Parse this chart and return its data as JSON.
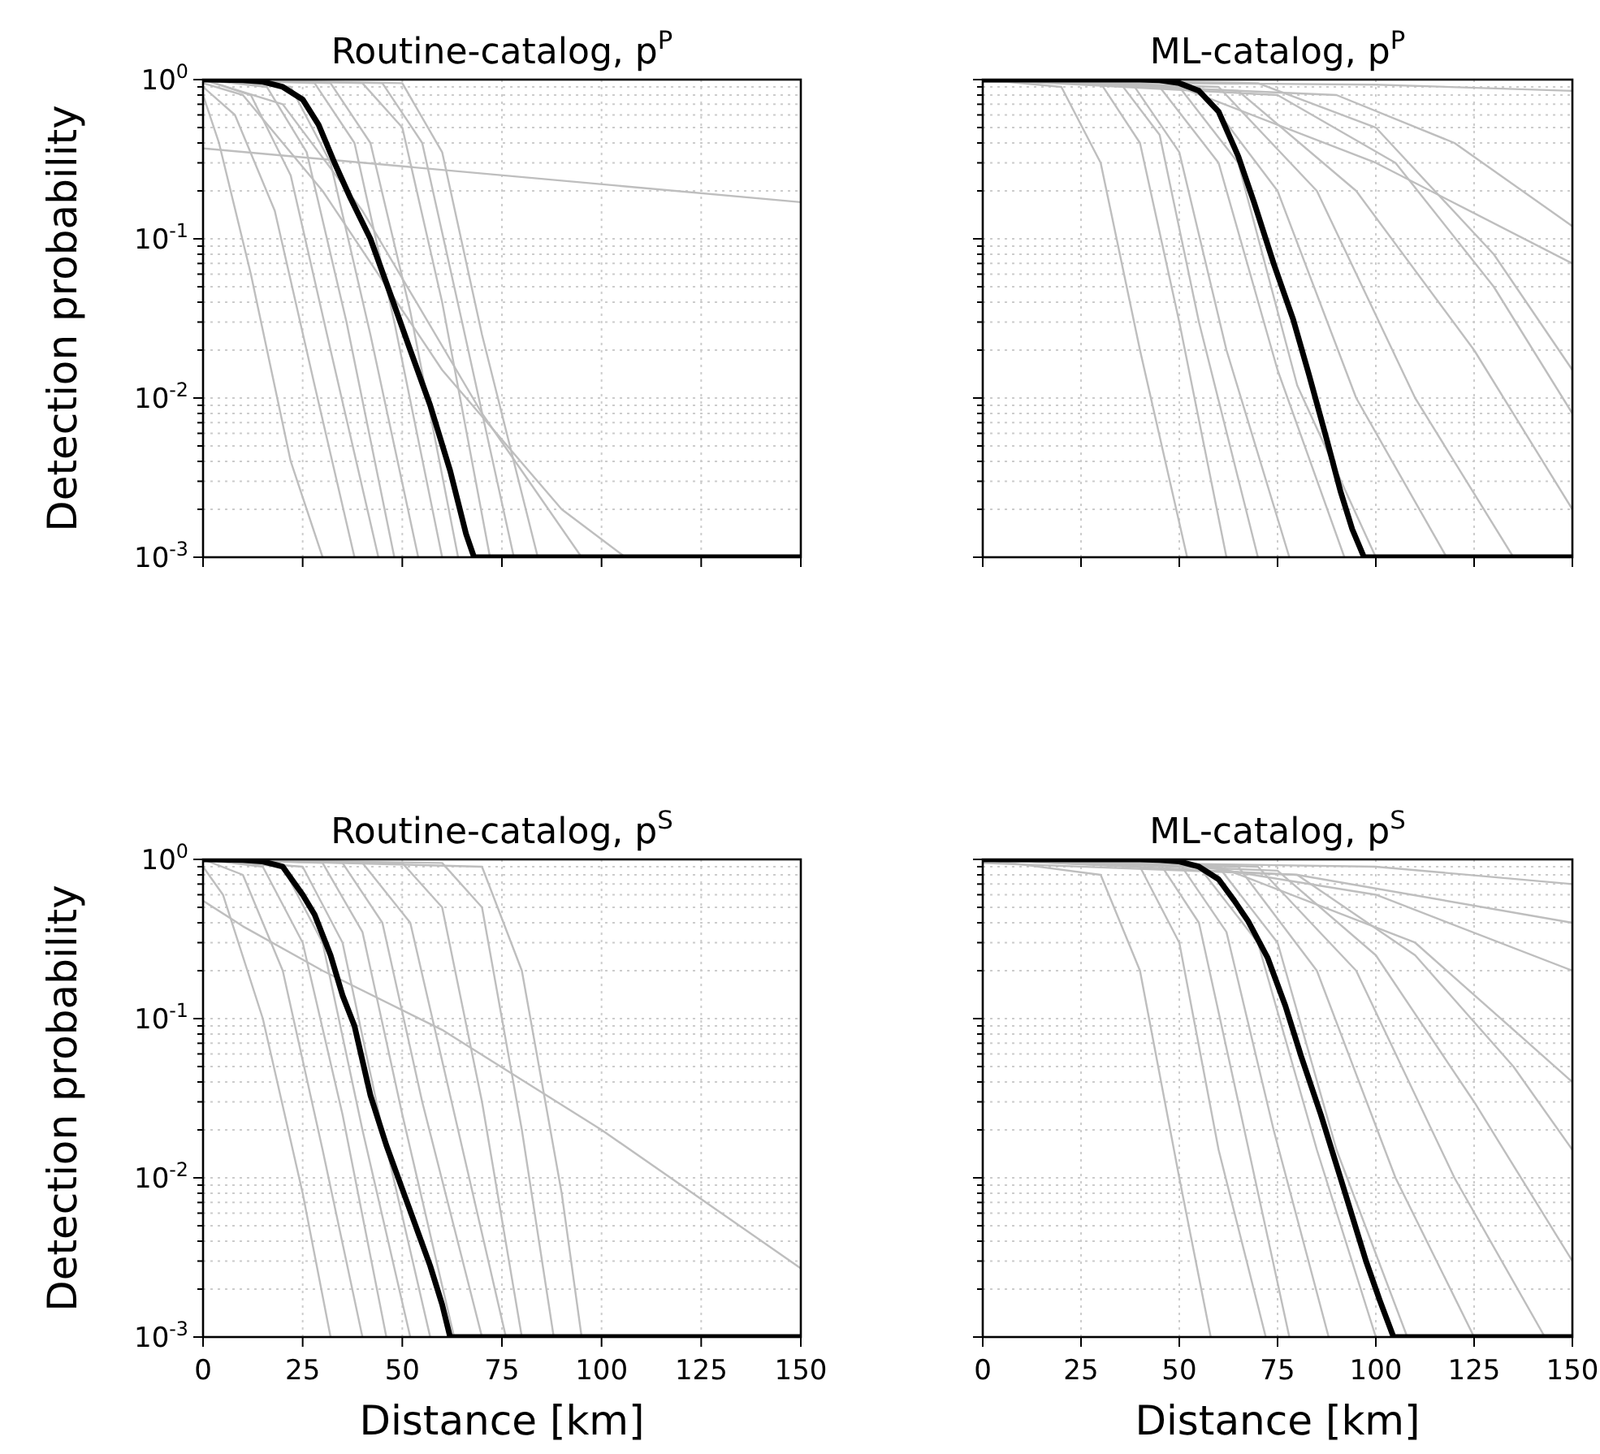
{
  "chart_data": [
    {
      "type": "line",
      "title": "Routine-catalog, p$^{P}$",
      "ylabel": "Detection probability",
      "log": "y",
      "grid": true,
      "tick_labels": "y",
      "xlim": [
        0,
        150
      ],
      "ylim": [
        0.001,
        1
      ],
      "xticks": [
        0,
        25,
        50,
        75,
        100,
        125,
        150
      ],
      "yticks": [
        {
          "value": 0.001,
          "label": "10$^{-3}$"
        },
        {
          "value": 0.002,
          "label": null
        },
        {
          "value": 0.003,
          "label": null
        },
        {
          "value": 0.004,
          "label": null
        },
        {
          "value": 0.005,
          "label": null
        },
        {
          "value": 0.006,
          "label": null
        },
        {
          "value": 0.007,
          "label": null
        },
        {
          "value": 0.008,
          "label": null
        },
        {
          "value": 0.009,
          "label": null
        },
        {
          "value": 0.01,
          "label": "10$^{-2}$"
        },
        {
          "value": 0.02,
          "label": null
        },
        {
          "value": 0.03,
          "label": null
        },
        {
          "value": 0.04,
          "label": null
        },
        {
          "value": 0.05,
          "label": null
        },
        {
          "value": 0.06,
          "label": null
        },
        {
          "value": 0.07,
          "label": null
        },
        {
          "value": 0.08,
          "label": null
        },
        {
          "value": 0.09,
          "label": null
        },
        {
          "value": 0.1,
          "label": "10$^{-1}$"
        },
        {
          "value": 0.2,
          "label": null
        },
        {
          "value": 0.3,
          "label": null
        },
        {
          "value": 0.4,
          "label": null
        },
        {
          "value": 0.5,
          "label": null
        },
        {
          "value": 0.6,
          "label": null
        },
        {
          "value": 0.7,
          "label": null
        },
        {
          "value": 0.8,
          "label": null
        },
        {
          "value": 0.9,
          "label": null
        },
        {
          "value": 1,
          "label": "10$^{0}$"
        }
      ],
      "series": [
        {
          "color": "#bebebe",
          "x": [
            0,
            8,
            18,
            28,
            38
          ],
          "values": [
            0.9,
            0.6,
            0.15,
            0.012,
            0.001
          ]
        },
        {
          "color": "#bebebe",
          "x": [
            0,
            12,
            22,
            32,
            44
          ],
          "values": [
            1,
            0.8,
            0.25,
            0.02,
            0.001
          ]
        },
        {
          "color": "#bebebe",
          "x": [
            0,
            16,
            26,
            36,
            48
          ],
          "values": [
            1,
            0.9,
            0.35,
            0.03,
            0.001
          ]
        },
        {
          "color": "#bebebe",
          "x": [
            0,
            22,
            32,
            42,
            54
          ],
          "values": [
            1,
            0.9,
            0.3,
            0.025,
            0.001
          ]
        },
        {
          "color": "#bebebe",
          "x": [
            0,
            28,
            38,
            48,
            60
          ],
          "values": [
            1,
            0.95,
            0.4,
            0.03,
            0.001
          ]
        },
        {
          "color": "#bebebe",
          "x": [
            0,
            32,
            42,
            52,
            64
          ],
          "values": [
            1,
            0.95,
            0.4,
            0.035,
            0.001
          ]
        },
        {
          "color": "#bebebe",
          "x": [
            0,
            40,
            50,
            60,
            72
          ],
          "values": [
            1,
            0.95,
            0.5,
            0.04,
            0.001
          ]
        },
        {
          "color": "#bebebe",
          "x": [
            0,
            45,
            55,
            65,
            78
          ],
          "values": [
            1,
            0.95,
            0.4,
            0.03,
            0.001
          ]
        },
        {
          "color": "#bebebe",
          "x": [
            0,
            50,
            60,
            70,
            84
          ],
          "values": [
            1,
            0.95,
            0.35,
            0.025,
            0.001
          ]
        },
        {
          "color": "#bebebe",
          "x": [
            0,
            10,
            30,
            60,
            90,
            106
          ],
          "values": [
            0.95,
            0.8,
            0.2,
            0.015,
            0.002,
            0.001
          ]
        },
        {
          "color": "#bebebe",
          "x": [
            0,
            150
          ],
          "values": [
            0.37,
            0.17
          ]
        },
        {
          "color": "#bebebe",
          "x": [
            0,
            4,
            12,
            22,
            30
          ],
          "values": [
            0.8,
            0.4,
            0.06,
            0.004,
            0.001
          ]
        },
        {
          "color": "#bebebe",
          "x": [
            0,
            20,
            40,
            70,
            95
          ],
          "values": [
            1,
            0.7,
            0.15,
            0.008,
            0.001
          ]
        },
        {
          "color": "#000000",
          "x": [
            0,
            10,
            15,
            20,
            25,
            29,
            33,
            37,
            42,
            47,
            52,
            57,
            62,
            66,
            68,
            150
          ],
          "values": [
            1,
            0.99,
            0.97,
            0.9,
            0.75,
            0.52,
            0.3,
            0.18,
            0.1,
            0.045,
            0.02,
            0.009,
            0.0035,
            0.0014,
            0.001,
            0.001
          ]
        }
      ]
    },
    {
      "type": "line",
      "title": "ML-catalog, p$^{P}$",
      "log": "y",
      "grid": true,
      "tick_labels": false,
      "xlim": [
        0,
        150
      ],
      "ylim": [
        0.001,
        1
      ],
      "xticks": [
        0,
        25,
        50,
        75,
        100,
        125,
        150
      ],
      "yticks": [
        0.001,
        {
          "value": 0.002,
          "label": null
        },
        {
          "value": 0.003,
          "label": null
        },
        {
          "value": 0.004,
          "label": null
        },
        {
          "value": 0.005,
          "label": null
        },
        {
          "value": 0.006,
          "label": null
        },
        {
          "value": 0.007,
          "label": null
        },
        {
          "value": 0.008,
          "label": null
        },
        {
          "value": 0.009,
          "label": null
        },
        0.01,
        {
          "value": 0.02,
          "label": null
        },
        {
          "value": 0.03,
          "label": null
        },
        {
          "value": 0.04,
          "label": null
        },
        {
          "value": 0.05,
          "label": null
        },
        {
          "value": 0.06,
          "label": null
        },
        {
          "value": 0.07,
          "label": null
        },
        {
          "value": 0.08,
          "label": null
        },
        {
          "value": 0.09,
          "label": null
        },
        0.1,
        {
          "value": 0.2,
          "label": null
        },
        {
          "value": 0.3,
          "label": null
        },
        {
          "value": 0.4,
          "label": null
        },
        {
          "value": 0.5,
          "label": null
        },
        {
          "value": 0.6,
          "label": null
        },
        {
          "value": 0.7,
          "label": null
        },
        {
          "value": 0.8,
          "label": null
        },
        {
          "value": 0.9,
          "label": null
        },
        1
      ],
      "series": [
        {
          "color": "#bebebe",
          "x": [
            0,
            20,
            30,
            40,
            52
          ],
          "values": [
            1,
            0.9,
            0.3,
            0.02,
            0.001
          ]
        },
        {
          "color": "#bebebe",
          "x": [
            0,
            30,
            40,
            50,
            62
          ],
          "values": [
            1,
            0.95,
            0.4,
            0.03,
            0.001
          ]
        },
        {
          "color": "#bebebe",
          "x": [
            0,
            35,
            45,
            55,
            70
          ],
          "values": [
            1,
            0.95,
            0.45,
            0.03,
            0.001
          ]
        },
        {
          "color": "#bebebe",
          "x": [
            0,
            38,
            50,
            62,
            78
          ],
          "values": [
            1,
            0.95,
            0.35,
            0.02,
            0.001
          ]
        },
        {
          "color": "#bebebe",
          "x": [
            0,
            45,
            60,
            75,
            92
          ],
          "values": [
            1,
            0.9,
            0.3,
            0.015,
            0.001
          ]
        },
        {
          "color": "#bebebe",
          "x": [
            0,
            50,
            65,
            80,
            100
          ],
          "values": [
            1,
            0.9,
            0.3,
            0.012,
            0.001
          ]
        },
        {
          "color": "#bebebe",
          "x": [
            0,
            55,
            75,
            95,
            118
          ],
          "values": [
            1,
            0.9,
            0.2,
            0.01,
            0.001
          ]
        },
        {
          "color": "#bebebe",
          "x": [
            0,
            60,
            85,
            110,
            135
          ],
          "values": [
            1,
            0.9,
            0.2,
            0.01,
            0.001
          ]
        },
        {
          "color": "#bebebe",
          "x": [
            0,
            65,
            95,
            125,
            150
          ],
          "values": [
            1,
            0.85,
            0.2,
            0.02,
            0.002
          ]
        },
        {
          "color": "#bebebe",
          "x": [
            0,
            75,
            105,
            130,
            150
          ],
          "values": [
            1,
            0.8,
            0.3,
            0.05,
            0.008
          ]
        },
        {
          "color": "#bebebe",
          "x": [
            0,
            90,
            120,
            150
          ],
          "values": [
            1,
            0.8,
            0.4,
            0.12
          ]
        },
        {
          "color": "#bebebe",
          "x": [
            0,
            50,
            100,
            150
          ],
          "values": [
            1,
            0.9,
            0.3,
            0.07
          ]
        },
        {
          "color": "#bebebe",
          "x": [
            0,
            100,
            150
          ],
          "values": [
            0.97,
            0.93,
            0.85
          ]
        },
        {
          "color": "#bebebe",
          "x": [
            0,
            70,
            100,
            130,
            150
          ],
          "values": [
            1,
            0.95,
            0.5,
            0.08,
            0.015
          ]
        },
        {
          "color": "#000000",
          "x": [
            0,
            40,
            45,
            50,
            55,
            60,
            65,
            69,
            74,
            79,
            83,
            87.5,
            91,
            94,
            97,
            150
          ],
          "values": [
            1,
            1,
            0.99,
            0.95,
            0.85,
            0.63,
            0.33,
            0.17,
            0.07,
            0.031,
            0.014,
            0.0055,
            0.0026,
            0.0015,
            0.001,
            0.001
          ]
        }
      ]
    },
    {
      "type": "line",
      "title": "Routine-catalog, p$^{S}$",
      "xlabel": "Distance [km]",
      "ylabel": "Detection probability",
      "log": "y",
      "grid": true,
      "xlim": [
        0,
        150
      ],
      "ylim": [
        0.001,
        1
      ],
      "xticks": [
        0,
        25,
        50,
        75,
        100,
        125,
        150
      ],
      "yticks": [
        {
          "value": 0.001,
          "label": "10$^{-3}$"
        },
        {
          "value": 0.002,
          "label": null
        },
        {
          "value": 0.003,
          "label": null
        },
        {
          "value": 0.004,
          "label": null
        },
        {
          "value": 0.005,
          "label": null
        },
        {
          "value": 0.006,
          "label": null
        },
        {
          "value": 0.007,
          "label": null
        },
        {
          "value": 0.008,
          "label": null
        },
        {
          "value": 0.009,
          "label": null
        },
        {
          "value": 0.01,
          "label": "10$^{-2}$"
        },
        {
          "value": 0.02,
          "label": null
        },
        {
          "value": 0.03,
          "label": null
        },
        {
          "value": 0.04,
          "label": null
        },
        {
          "value": 0.05,
          "label": null
        },
        {
          "value": 0.06,
          "label": null
        },
        {
          "value": 0.07,
          "label": null
        },
        {
          "value": 0.08,
          "label": null
        },
        {
          "value": 0.09,
          "label": null
        },
        {
          "value": 0.1,
          "label": "10$^{-1}$"
        },
        {
          "value": 0.2,
          "label": null
        },
        {
          "value": 0.3,
          "label": null
        },
        {
          "value": 0.4,
          "label": null
        },
        {
          "value": 0.5,
          "label": null
        },
        {
          "value": 0.6,
          "label": null
        },
        {
          "value": 0.7,
          "label": null
        },
        {
          "value": 0.8,
          "label": null
        },
        {
          "value": 0.9,
          "label": null
        },
        {
          "value": 1,
          "label": "10$^{0}$"
        }
      ],
      "series": [
        {
          "color": "#bebebe",
          "x": [
            0,
            5,
            15,
            25,
            32
          ],
          "values": [
            0.9,
            0.6,
            0.1,
            0.008,
            0.001
          ]
        },
        {
          "color": "#bebebe",
          "x": [
            0,
            10,
            20,
            30,
            40
          ],
          "values": [
            1,
            0.8,
            0.2,
            0.015,
            0.001
          ]
        },
        {
          "color": "#bebebe",
          "x": [
            0,
            15,
            25,
            35,
            46
          ],
          "values": [
            1,
            0.9,
            0.3,
            0.025,
            0.001
          ]
        },
        {
          "color": "#bebebe",
          "x": [
            0,
            20,
            30,
            40,
            52
          ],
          "values": [
            1,
            0.9,
            0.3,
            0.02,
            0.001
          ]
        },
        {
          "color": "#bebebe",
          "x": [
            0,
            25,
            35,
            45,
            57
          ],
          "values": [
            1,
            0.9,
            0.3,
            0.02,
            0.001
          ]
        },
        {
          "color": "#bebebe",
          "x": [
            0,
            30,
            40,
            50,
            63
          ],
          "values": [
            1,
            0.95,
            0.35,
            0.025,
            0.001
          ]
        },
        {
          "color": "#bebebe",
          "x": [
            0,
            35,
            45,
            55,
            70
          ],
          "values": [
            1,
            0.95,
            0.4,
            0.03,
            0.001
          ]
        },
        {
          "color": "#bebebe",
          "x": [
            0,
            40,
            52,
            64,
            76
          ],
          "values": [
            1,
            0.95,
            0.4,
            0.02,
            0.001
          ]
        },
        {
          "color": "#bebebe",
          "x": [
            0,
            50,
            60,
            70,
            80
          ],
          "values": [
            1,
            0.95,
            0.5,
            0.03,
            0.001
          ]
        },
        {
          "color": "#bebebe",
          "x": [
            0,
            60,
            70,
            80,
            88
          ],
          "values": [
            1,
            0.95,
            0.5,
            0.02,
            0.001
          ]
        },
        {
          "color": "#bebebe",
          "x": [
            0,
            70,
            80,
            90,
            95
          ],
          "values": [
            1,
            0.9,
            0.2,
            0.008,
            0.001
          ]
        },
        {
          "color": "#bebebe",
          "x": [
            0,
            10,
            30,
            60,
            100,
            150
          ],
          "values": [
            0.55,
            0.38,
            0.2,
            0.085,
            0.02,
            0.0027
          ]
        },
        {
          "color": "#000000",
          "x": [
            0,
            10,
            15,
            20,
            25,
            28,
            32,
            35,
            38,
            42,
            46,
            50,
            54,
            57,
            60,
            62,
            150
          ],
          "values": [
            1,
            0.99,
            0.97,
            0.9,
            0.6,
            0.45,
            0.25,
            0.14,
            0.09,
            0.033,
            0.016,
            0.0085,
            0.0045,
            0.0028,
            0.0016,
            0.001,
            0.001
          ]
        }
      ]
    },
    {
      "type": "line",
      "title": "ML-catalog, p$^{S}$",
      "xlabel": "Distance [km]",
      "log": "y",
      "grid": true,
      "tick_labels": "x",
      "xlim": [
        0,
        150
      ],
      "ylim": [
        0.001,
        1
      ],
      "xticks": [
        0,
        25,
        50,
        75,
        100,
        125,
        150
      ],
      "yticks": [
        0.001,
        {
          "value": 0.002,
          "label": null
        },
        {
          "value": 0.003,
          "label": null
        },
        {
          "value": 0.004,
          "label": null
        },
        {
          "value": 0.005,
          "label": null
        },
        {
          "value": 0.006,
          "label": null
        },
        {
          "value": 0.007,
          "label": null
        },
        {
          "value": 0.008,
          "label": null
        },
        {
          "value": 0.009,
          "label": null
        },
        0.01,
        {
          "value": 0.02,
          "label": null
        },
        {
          "value": 0.03,
          "label": null
        },
        {
          "value": 0.04,
          "label": null
        },
        {
          "value": 0.05,
          "label": null
        },
        {
          "value": 0.06,
          "label": null
        },
        {
          "value": 0.07,
          "label": null
        },
        {
          "value": 0.08,
          "label": null
        },
        {
          "value": 0.09,
          "label": null
        },
        0.1,
        {
          "value": 0.2,
          "label": null
        },
        {
          "value": 0.3,
          "label": null
        },
        {
          "value": 0.4,
          "label": null
        },
        {
          "value": 0.5,
          "label": null
        },
        {
          "value": 0.6,
          "label": null
        },
        {
          "value": 0.7,
          "label": null
        },
        {
          "value": 0.8,
          "label": null
        },
        {
          "value": 0.9,
          "label": null
        },
        1
      ],
      "series": [
        {
          "color": "#bebebe",
          "x": [
            0,
            30,
            40,
            50,
            58
          ],
          "values": [
            1,
            0.8,
            0.2,
            0.01,
            0.001
          ]
        },
        {
          "color": "#bebebe",
          "x": [
            0,
            40,
            50,
            60,
            72
          ],
          "values": [
            1,
            0.9,
            0.3,
            0.015,
            0.001
          ]
        },
        {
          "color": "#bebebe",
          "x": [
            0,
            45,
            55,
            65,
            78
          ],
          "values": [
            1,
            0.95,
            0.4,
            0.03,
            0.001
          ]
        },
        {
          "color": "#bebebe",
          "x": [
            0,
            50,
            62,
            74,
            88
          ],
          "values": [
            1,
            0.95,
            0.35,
            0.02,
            0.001
          ]
        },
        {
          "color": "#bebebe",
          "x": [
            0,
            55,
            70,
            85,
            100
          ],
          "values": [
            1,
            0.9,
            0.3,
            0.015,
            0.001
          ]
        },
        {
          "color": "#bebebe",
          "x": [
            0,
            60,
            75,
            90,
            108
          ],
          "values": [
            1,
            0.9,
            0.3,
            0.015,
            0.001
          ]
        },
        {
          "color": "#bebebe",
          "x": [
            0,
            65,
            85,
            105,
            125
          ],
          "values": [
            1,
            0.9,
            0.2,
            0.01,
            0.001
          ]
        },
        {
          "color": "#bebebe",
          "x": [
            0,
            70,
            95,
            120,
            143
          ],
          "values": [
            1,
            0.9,
            0.2,
            0.01,
            0.001
          ]
        },
        {
          "color": "#bebebe",
          "x": [
            0,
            75,
            100,
            125,
            150
          ],
          "values": [
            1,
            0.85,
            0.25,
            0.03,
            0.003
          ]
        },
        {
          "color": "#bebebe",
          "x": [
            0,
            80,
            110,
            135,
            150
          ],
          "values": [
            1,
            0.8,
            0.25,
            0.05,
            0.015
          ]
        },
        {
          "color": "#bebebe",
          "x": [
            0,
            50,
            100,
            150
          ],
          "values": [
            1,
            0.95,
            0.6,
            0.2
          ]
        },
        {
          "color": "#bebebe",
          "x": [
            0,
            60,
            110,
            150
          ],
          "values": [
            1,
            0.9,
            0.3,
            0.04
          ]
        },
        {
          "color": "#bebebe",
          "x": [
            0,
            80,
            150
          ],
          "values": [
            0.95,
            0.8,
            0.4
          ]
        },
        {
          "color": "#bebebe",
          "x": [
            0,
            100,
            150
          ],
          "values": [
            0.98,
            0.9,
            0.7
          ]
        },
        {
          "color": "#000000",
          "x": [
            0,
            40,
            45,
            50,
            55,
            60,
            64,
            67.5,
            72.5,
            77,
            81,
            86,
            91,
            97.5,
            101,
            104.5,
            150
          ],
          "values": [
            1,
            1,
            0.99,
            0.97,
            0.9,
            0.75,
            0.55,
            0.41,
            0.24,
            0.12,
            0.058,
            0.025,
            0.01,
            0.003,
            0.0017,
            0.001,
            0.001
          ]
        }
      ]
    }
  ]
}
